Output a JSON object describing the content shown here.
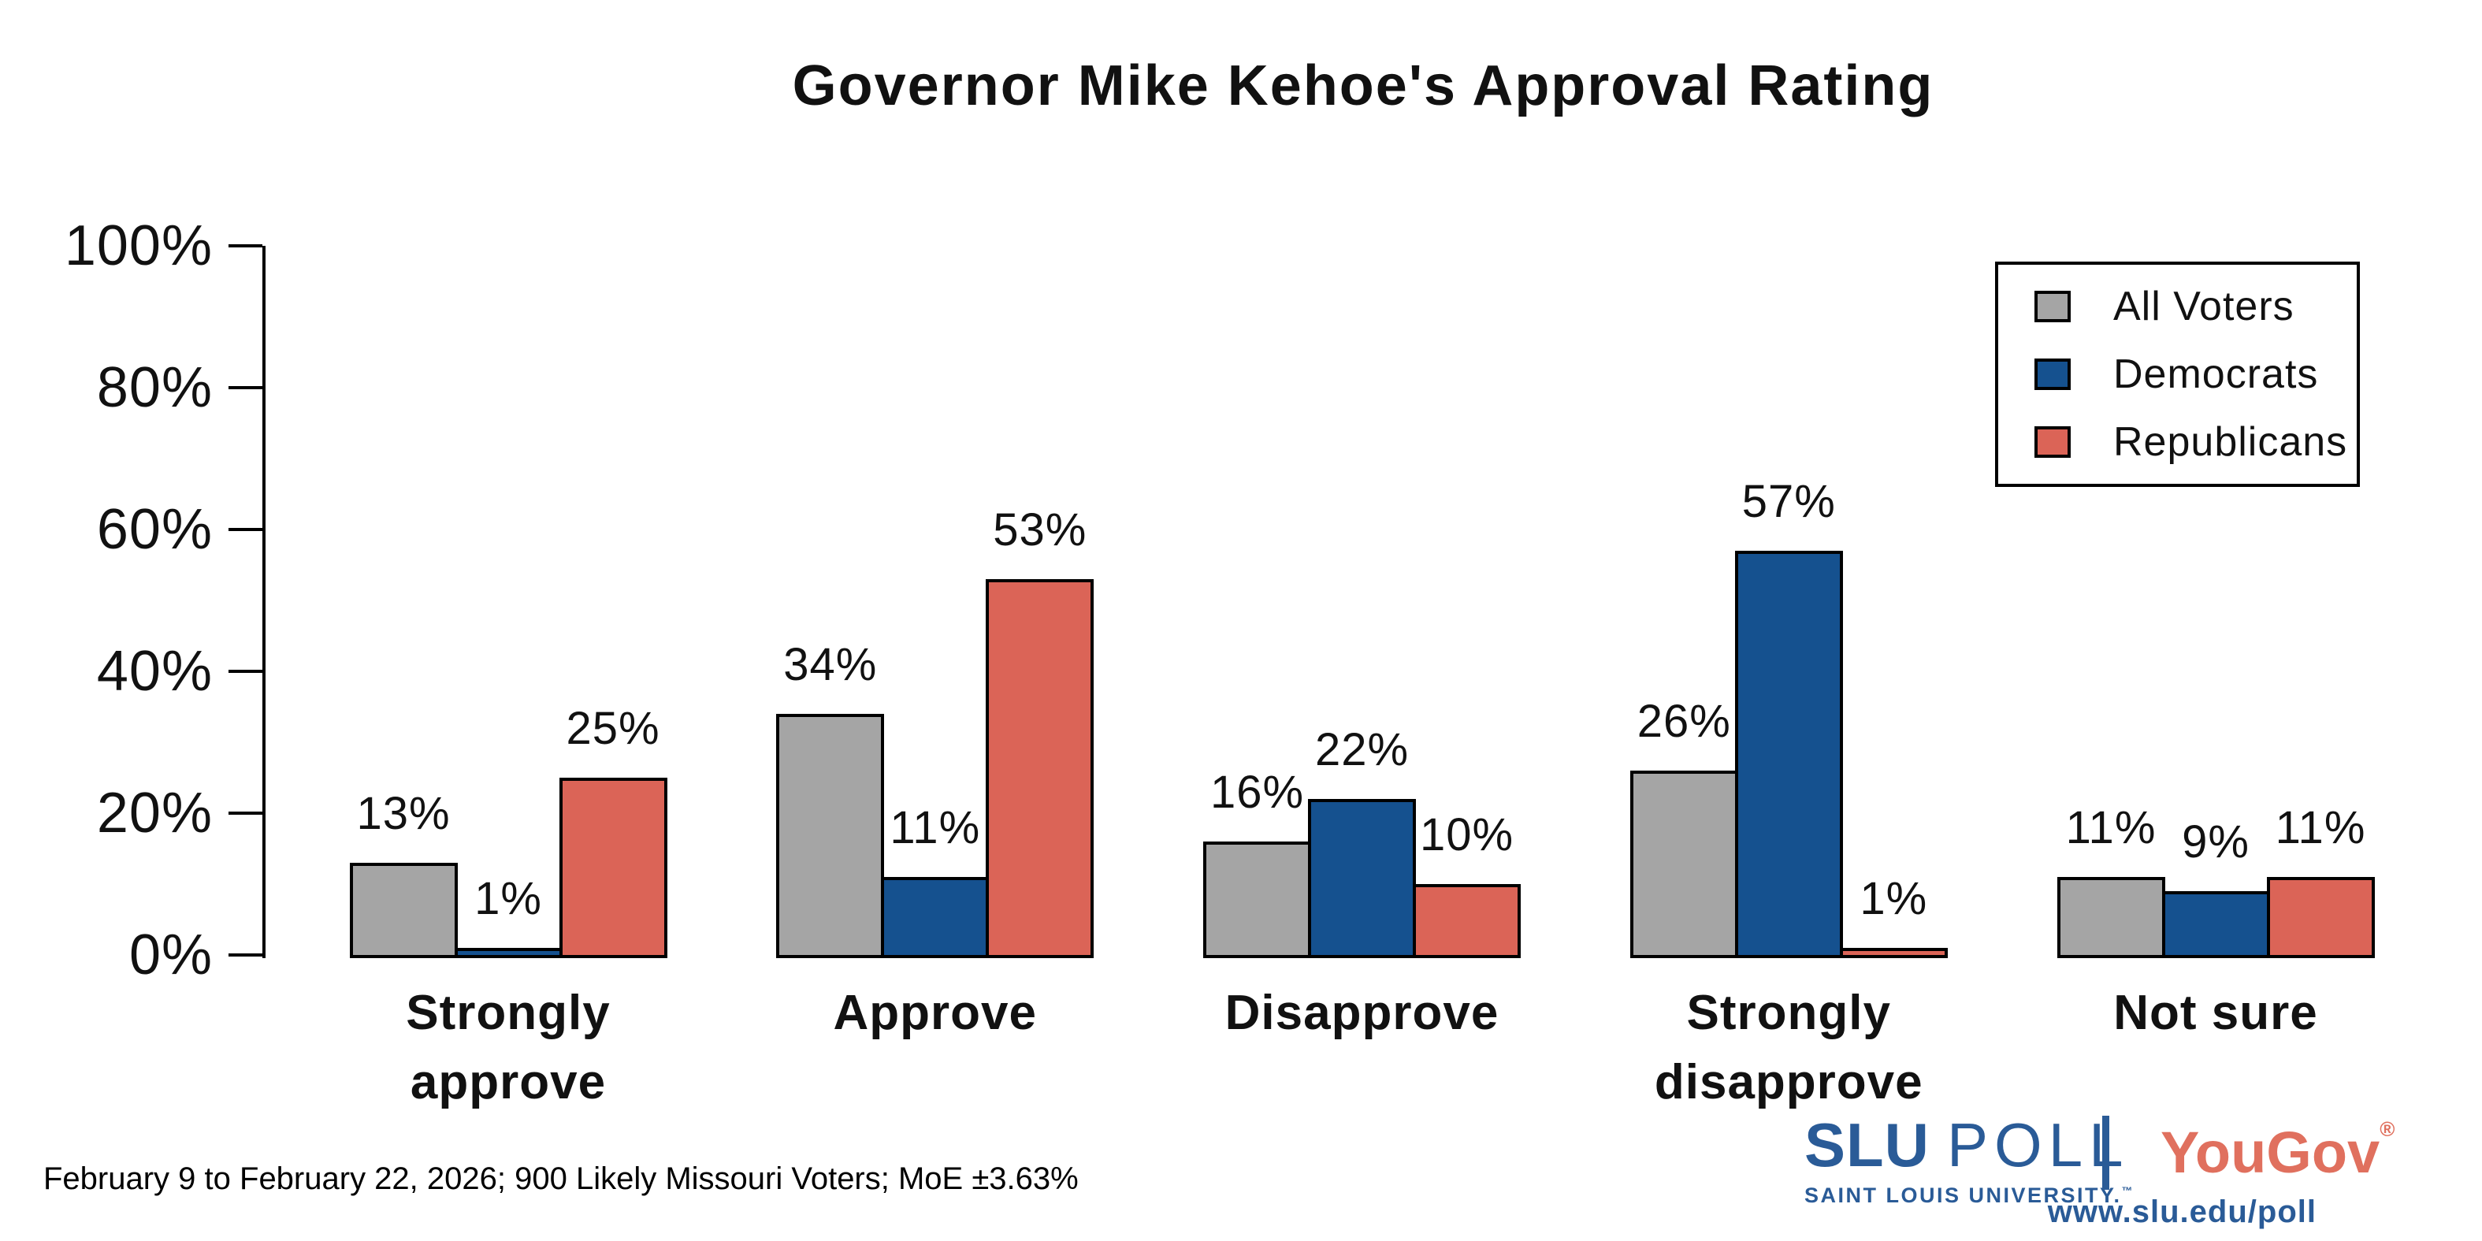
{
  "title": "Governor Mike Kehoe's Approval Rating",
  "legend": {
    "items": [
      {
        "label": "All Voters",
        "color": "#a5a5a5"
      },
      {
        "label": "Democrats",
        "color": "#15518f"
      },
      {
        "label": "Republicans",
        "color": "#db6457"
      }
    ]
  },
  "chart_data": {
    "type": "bar",
    "title": "Governor Mike Kehoe's Approval Rating",
    "categories": [
      "Strongly\napprove",
      "Approve",
      "Disapprove",
      "Strongly\ndisapprove",
      "Not sure"
    ],
    "series": [
      {
        "name": "All Voters",
        "color": "#a5a5a5",
        "values": [
          13,
          34,
          16,
          26,
          11
        ]
      },
      {
        "name": "Democrats",
        "color": "#15518f",
        "values": [
          1,
          11,
          22,
          57,
          9
        ]
      },
      {
        "name": "Republicans",
        "color": "#db6457",
        "values": [
          25,
          53,
          10,
          1,
          11
        ]
      }
    ],
    "value_labels": [
      [
        "13%",
        "34%",
        "16%",
        "26%",
        "11%"
      ],
      [
        "1%",
        "11%",
        "22%",
        "57%",
        "9%"
      ],
      [
        "25%",
        "53%",
        "10%",
        "1%",
        "11%"
      ]
    ],
    "y_ticks_bottom_to_top": [
      "0%",
      "20%",
      "40%",
      "60%",
      "80%",
      "100%"
    ],
    "ylim": [
      0,
      100
    ],
    "grid": false,
    "legend_position": "top-right"
  },
  "footer": {
    "note": "February 9 to February 22, 2026; 900 Likely Missouri Voters; MoE ±3.63%"
  },
  "branding": {
    "slu": "SLU",
    "poll": "POLL",
    "university": "SAINT LOUIS UNIVERSITY.",
    "trademark": "™",
    "partner": "YouGov",
    "registered": "®",
    "url": "www.slu.edu/poll",
    "slu_blue": "#2a5b97",
    "yougov_red": "#e0705e"
  }
}
